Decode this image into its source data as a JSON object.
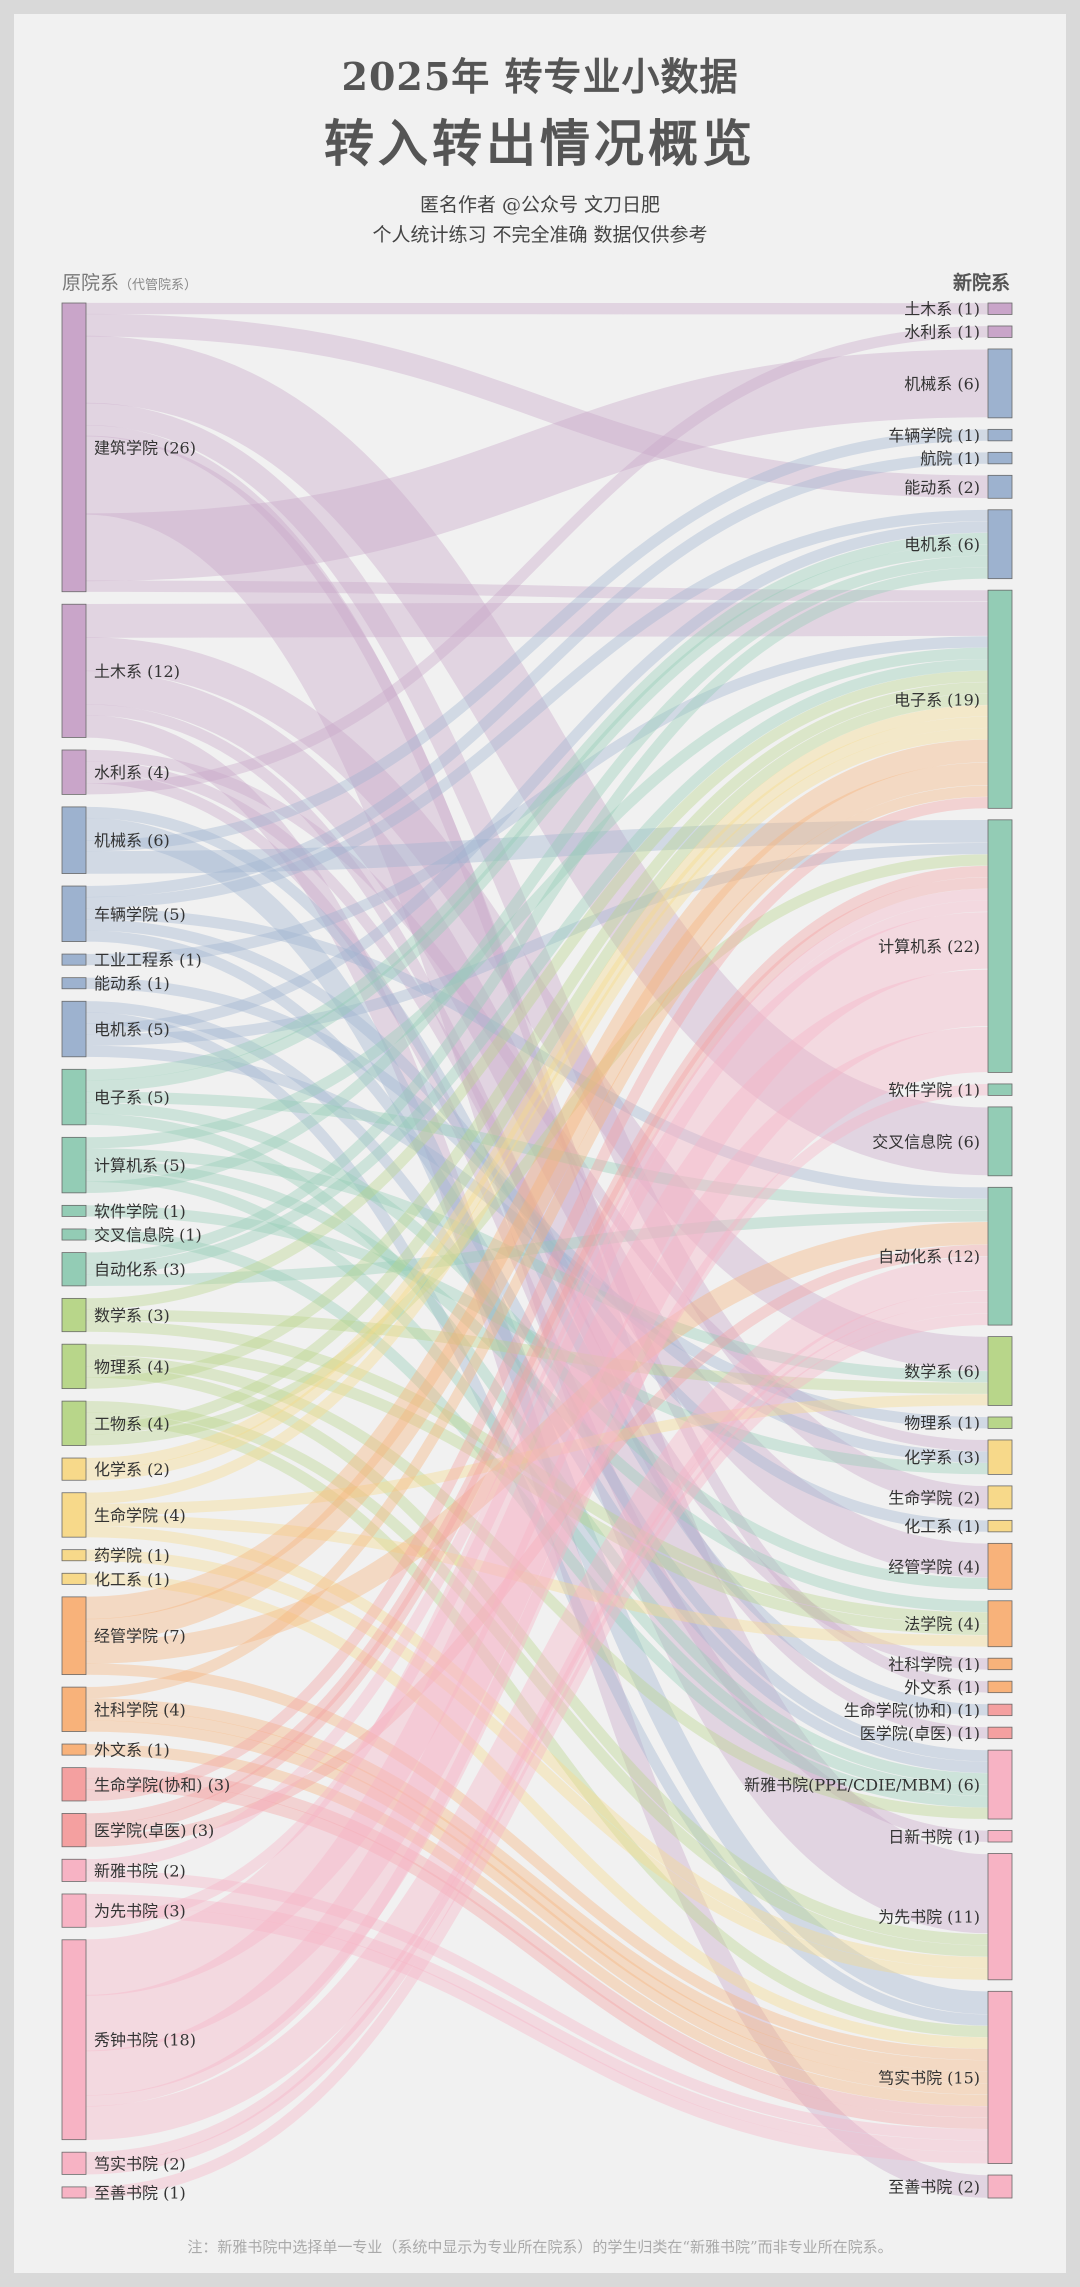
{
  "header": {
    "title_line1": "2025年  转专业小数据",
    "title_line2": "转入转出情况概览",
    "subtitle1": "匿名作者 @公众号 文刀日肥",
    "subtitle2": "个人统计练习  不完全准确  数据仅供参考"
  },
  "axis_left": {
    "label": "原院系",
    "sublabel": "（代管院系）"
  },
  "axis_right": {
    "label": "新院系"
  },
  "footnote": "注：新雅书院中选择单一专业（系统中显示为专业所在院系）的学生归类在“新雅书院”而非专业所在院系。",
  "chart_data": {
    "type": "sankey",
    "sources": [
      {
        "name": "建筑学院",
        "count": 26,
        "color": "#c9a5c9"
      },
      {
        "name": "土木系",
        "count": 12,
        "color": "#c9a5c9"
      },
      {
        "name": "水利系",
        "count": 4,
        "color": "#c9a5c9"
      },
      {
        "name": "机械系",
        "count": 6,
        "color": "#9db2cf"
      },
      {
        "name": "车辆学院",
        "count": 5,
        "color": "#9db2cf"
      },
      {
        "name": "工业工程系",
        "count": 1,
        "color": "#9db2cf"
      },
      {
        "name": "能动系",
        "count": 1,
        "color": "#9db2cf"
      },
      {
        "name": "电机系",
        "count": 5,
        "color": "#9db2cf"
      },
      {
        "name": "电子系",
        "count": 5,
        "color": "#93ccb5"
      },
      {
        "name": "计算机系",
        "count": 5,
        "color": "#93ccb5"
      },
      {
        "name": "软件学院",
        "count": 1,
        "color": "#93ccb5"
      },
      {
        "name": "交叉信息院",
        "count": 1,
        "color": "#93ccb5"
      },
      {
        "name": "自动化系",
        "count": 3,
        "color": "#93ccb5"
      },
      {
        "name": "数学系",
        "count": 3,
        "color": "#b8d68a"
      },
      {
        "name": "物理系",
        "count": 4,
        "color": "#b8d68a"
      },
      {
        "name": "工物系",
        "count": 4,
        "color": "#b8d68a"
      },
      {
        "name": "化学系",
        "count": 2,
        "color": "#f7d98a"
      },
      {
        "name": "生命学院",
        "count": 4,
        "color": "#f7d98a"
      },
      {
        "name": "药学院",
        "count": 1,
        "color": "#f7d98a"
      },
      {
        "name": "化工系",
        "count": 1,
        "color": "#f7d98a"
      },
      {
        "name": "经管学院",
        "count": 7,
        "color": "#f8b27a"
      },
      {
        "name": "社科学院",
        "count": 4,
        "color": "#f8b27a"
      },
      {
        "name": "外文系",
        "count": 1,
        "color": "#f8b27a"
      },
      {
        "name": "生命学院(协和)",
        "count": 3,
        "color": "#f4a0a0"
      },
      {
        "name": "医学院(卓医)",
        "count": 3,
        "color": "#f4a0a0"
      },
      {
        "name": "新雅书院",
        "count": 2,
        "color": "#f7b3c4"
      },
      {
        "name": "为先书院",
        "count": 3,
        "color": "#f7b3c4"
      },
      {
        "name": "秀钟书院",
        "count": 18,
        "color": "#f7b3c4"
      },
      {
        "name": "笃实书院",
        "count": 2,
        "color": "#f7b3c4"
      },
      {
        "name": "至善书院",
        "count": 1,
        "color": "#f7b3c4"
      }
    ],
    "targets": [
      {
        "name": "土木系",
        "count": 1,
        "color": "#c9a5c9"
      },
      {
        "name": "水利系",
        "count": 1,
        "color": "#c9a5c9"
      },
      {
        "name": "机械系",
        "count": 6,
        "color": "#9db2cf"
      },
      {
        "name": "车辆学院",
        "count": 1,
        "color": "#9db2cf"
      },
      {
        "name": "航院",
        "count": 1,
        "color": "#9db2cf"
      },
      {
        "name": "能动系",
        "count": 2,
        "color": "#9db2cf"
      },
      {
        "name": "电机系",
        "count": 6,
        "color": "#9db2cf"
      },
      {
        "name": "电子系",
        "count": 19,
        "color": "#93ccb5"
      },
      {
        "name": "计算机系",
        "count": 22,
        "color": "#93ccb5"
      },
      {
        "name": "软件学院",
        "count": 1,
        "color": "#93ccb5"
      },
      {
        "name": "交叉信息院",
        "count": 6,
        "color": "#93ccb5"
      },
      {
        "name": "自动化系",
        "count": 12,
        "color": "#93ccb5"
      },
      {
        "name": "数学系",
        "count": 6,
        "color": "#b8d68a"
      },
      {
        "name": "物理系",
        "count": 1,
        "color": "#b8d68a"
      },
      {
        "name": "化学系",
        "count": 3,
        "color": "#f7d98a"
      },
      {
        "name": "生命学院",
        "count": 2,
        "color": "#f7d98a"
      },
      {
        "name": "化工系",
        "count": 1,
        "color": "#f7d98a"
      },
      {
        "name": "经管学院",
        "count": 4,
        "color": "#f8b27a"
      },
      {
        "name": "法学院",
        "count": 4,
        "color": "#f8b27a"
      },
      {
        "name": "社科学院",
        "count": 1,
        "color": "#f8b27a"
      },
      {
        "name": "外文系",
        "count": 1,
        "color": "#f8b27a"
      },
      {
        "name": "生命学院(协和)",
        "count": 1,
        "color": "#f4a0a0"
      },
      {
        "name": "医学院(卓医)",
        "count": 1,
        "color": "#f4a0a0"
      },
      {
        "name": "新雅书院(PPE/CDIE/MBM)",
        "count": 6,
        "color": "#f7b3c4"
      },
      {
        "name": "日新书院",
        "count": 1,
        "color": "#f7b3c4"
      },
      {
        "name": "为先书院",
        "count": 11,
        "color": "#f7b3c4"
      },
      {
        "name": "笃实书院",
        "count": 15,
        "color": "#f7b3c4"
      },
      {
        "name": "至善书院",
        "count": 2,
        "color": "#f7b3c4"
      }
    ]
  }
}
